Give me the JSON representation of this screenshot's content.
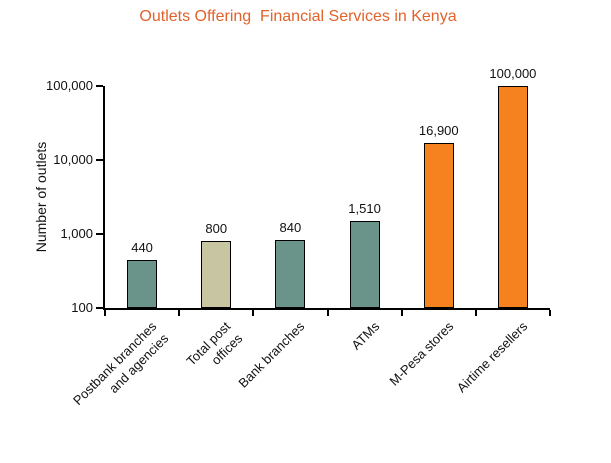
{
  "chart_data": {
    "type": "bar",
    "title": "Outlets Offering  Financial Services in Kenya",
    "xlabel": "",
    "ylabel": "Number of outlets",
    "yscale": "log",
    "ylim": [
      100,
      100000
    ],
    "ytick_labels": [
      "100",
      "1,000",
      "10,000",
      "100,000"
    ],
    "categories": [
      "Postbank branches\nand agencies",
      "Total post\noffices",
      "Bank branches",
      "ATMs",
      "M-Pesa stores",
      "Airtime resellers"
    ],
    "values": [
      440,
      800,
      840,
      1510,
      16900,
      100000
    ],
    "value_labels": [
      "440",
      "800",
      "840",
      "1,510",
      "16,900",
      "100,000"
    ],
    "bar_colors": [
      "#6A948A",
      "#C8C5A3",
      "#6A948A",
      "#6A948A",
      "#F6821F",
      "#F6821F"
    ],
    "grid": false,
    "legend": "none"
  },
  "colors": {
    "title": "#E2622B",
    "teal_bar": "#6A948A",
    "beige_bar": "#C8C5A3",
    "orange_bar": "#F6821F",
    "axis": "#000000",
    "text": "#111111"
  }
}
